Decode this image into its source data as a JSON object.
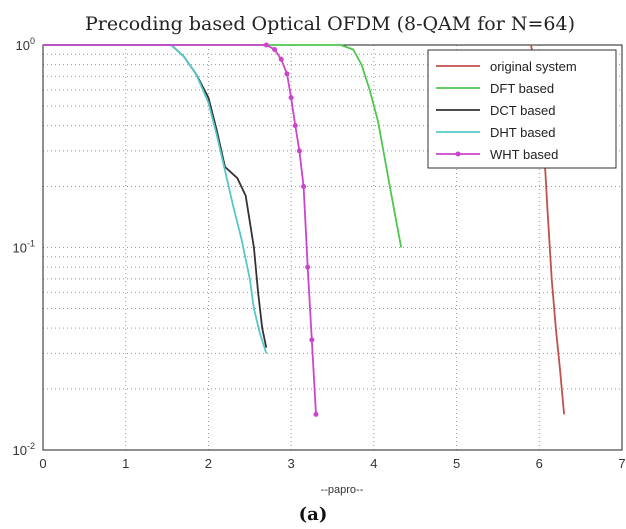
{
  "chart_data": {
    "type": "line",
    "title": "Precoding based Optical OFDM (8-QAM for N=64)",
    "xlabel": "--papro--",
    "ylabel": "",
    "xlim": [
      0,
      7
    ],
    "ylim": [
      0.01,
      1
    ],
    "yscale": "log",
    "grid": true,
    "legend_position": "top-right",
    "x_ticks": [
      "0",
      "1",
      "2",
      "3",
      "4",
      "5",
      "6",
      "7"
    ],
    "y_ticks": [
      {
        "value": 1,
        "base": "10",
        "exp": "0"
      },
      {
        "value": 0.1,
        "base": "10",
        "exp": "-1"
      },
      {
        "value": 0.01,
        "base": "10",
        "exp": "-2"
      }
    ],
    "caption": "(a)",
    "series": [
      {
        "name": "original system",
        "color": "#c0504d",
        "marker": "none",
        "x": [
          5.9,
          6.0,
          6.05,
          6.1,
          6.15,
          6.2,
          6.25,
          6.3
        ],
        "y": [
          1.0,
          0.6,
          0.35,
          0.15,
          0.07,
          0.04,
          0.025,
          0.015
        ]
      },
      {
        "name": "DFT based",
        "color": "#4fc64f",
        "marker": "none",
        "x": [
          0,
          3.6,
          3.75,
          3.85,
          3.95,
          4.05,
          4.15,
          4.25,
          4.33
        ],
        "y": [
          1.0,
          1.0,
          0.95,
          0.8,
          0.6,
          0.42,
          0.25,
          0.15,
          0.1
        ]
      },
      {
        "name": "DCT based",
        "color": "#333333",
        "marker": "none",
        "x": [
          0,
          1.55,
          1.7,
          1.85,
          2.0,
          2.1,
          2.2,
          2.35,
          2.45,
          2.55,
          2.6,
          2.65,
          2.7
        ],
        "y": [
          1.0,
          1.0,
          0.88,
          0.72,
          0.55,
          0.38,
          0.25,
          0.22,
          0.18,
          0.1,
          0.06,
          0.04,
          0.032
        ]
      },
      {
        "name": "DHT based",
        "color": "#56c8c8",
        "marker": "none",
        "x": [
          0,
          1.55,
          1.7,
          1.85,
          2.0,
          2.1,
          2.2,
          2.3,
          2.4,
          2.5,
          2.55,
          2.62,
          2.7
        ],
        "y": [
          1.0,
          1.0,
          0.88,
          0.72,
          0.52,
          0.36,
          0.24,
          0.16,
          0.11,
          0.07,
          0.05,
          0.038,
          0.03
        ]
      },
      {
        "name": "WHT based",
        "color": "#cc44cc",
        "marker": "x",
        "x": [
          0,
          2.7,
          2.8,
          2.88,
          2.95,
          3.0,
          3.05,
          3.1,
          3.15,
          3.2,
          3.25,
          3.3
        ],
        "y": [
          1.0,
          1.0,
          0.95,
          0.85,
          0.72,
          0.55,
          0.4,
          0.3,
          0.2,
          0.08,
          0.035,
          0.015
        ]
      }
    ]
  }
}
